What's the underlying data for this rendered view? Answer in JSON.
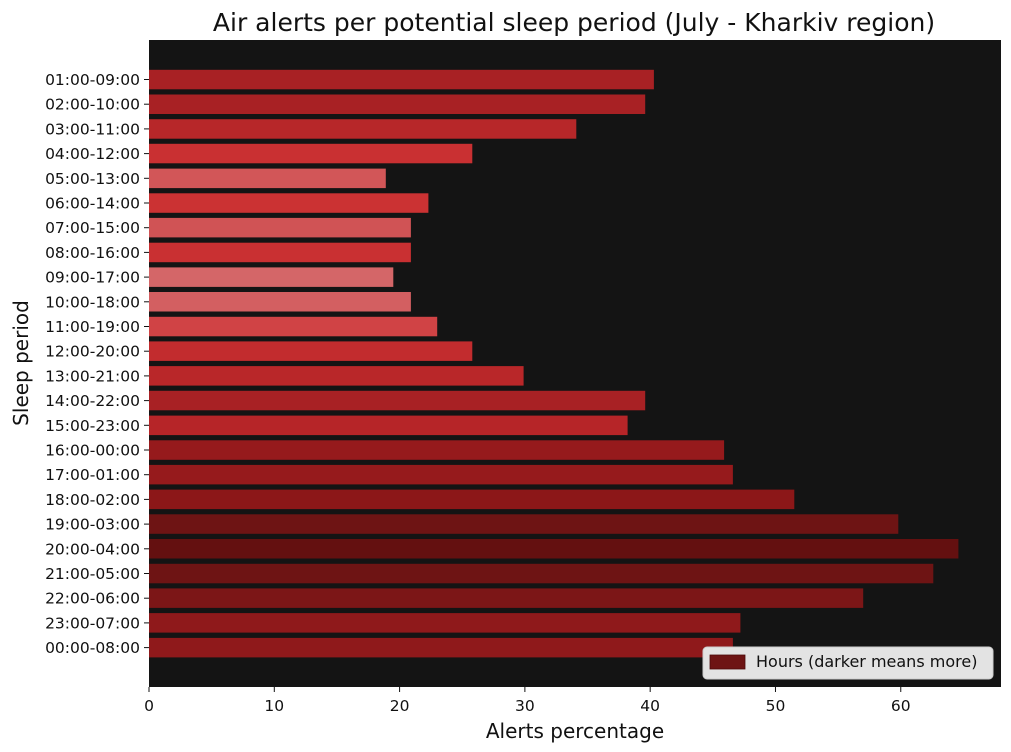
{
  "chart_data": {
    "type": "bar",
    "orientation": "horizontal",
    "title": "Air alerts per potential sleep period (July - Kharkiv region)",
    "xlabel": "Alerts percentage",
    "ylabel": "Sleep period",
    "xlim": [
      0,
      68
    ],
    "xticks": [
      0,
      10,
      20,
      30,
      40,
      50,
      60
    ],
    "grid": false,
    "legend": {
      "label": "Hours (darker means more)",
      "position": "bottom-right",
      "color": "#6e1414"
    },
    "colors": {
      "plot_background": "#141414"
    },
    "categories": [
      "01:00-09:00",
      "02:00-10:00",
      "03:00-11:00",
      "04:00-12:00",
      "05:00-13:00",
      "06:00-14:00",
      "07:00-15:00",
      "08:00-16:00",
      "09:00-17:00",
      "10:00-18:00",
      "11:00-19:00",
      "12:00-20:00",
      "13:00-21:00",
      "14:00-22:00",
      "15:00-23:00",
      "16:00-00:00",
      "17:00-01:00",
      "18:00-02:00",
      "19:00-03:00",
      "20:00-04:00",
      "21:00-05:00",
      "22:00-06:00",
      "23:00-07:00",
      "00:00-08:00"
    ],
    "values": [
      40.3,
      39.6,
      34.1,
      25.8,
      18.9,
      22.3,
      20.9,
      20.9,
      19.5,
      20.9,
      23.0,
      25.8,
      29.9,
      39.6,
      38.2,
      45.9,
      46.6,
      51.5,
      59.8,
      64.6,
      62.6,
      57.0,
      47.2,
      46.6
    ],
    "bar_colors": [
      "#a82124",
      "#a82124",
      "#b72729",
      "#c93032",
      "#d25658",
      "#cb3233",
      "#d05355",
      "#c93032",
      "#d46668",
      "#d35f61",
      "#d04345",
      "#c22c2e",
      "#b92729",
      "#a82124",
      "#b62528",
      "#961a1c",
      "#961a1c",
      "#8c1718",
      "#6e1414",
      "#641010",
      "#6e1414",
      "#7c1617",
      "#8f191b",
      "#8f191b"
    ]
  }
}
